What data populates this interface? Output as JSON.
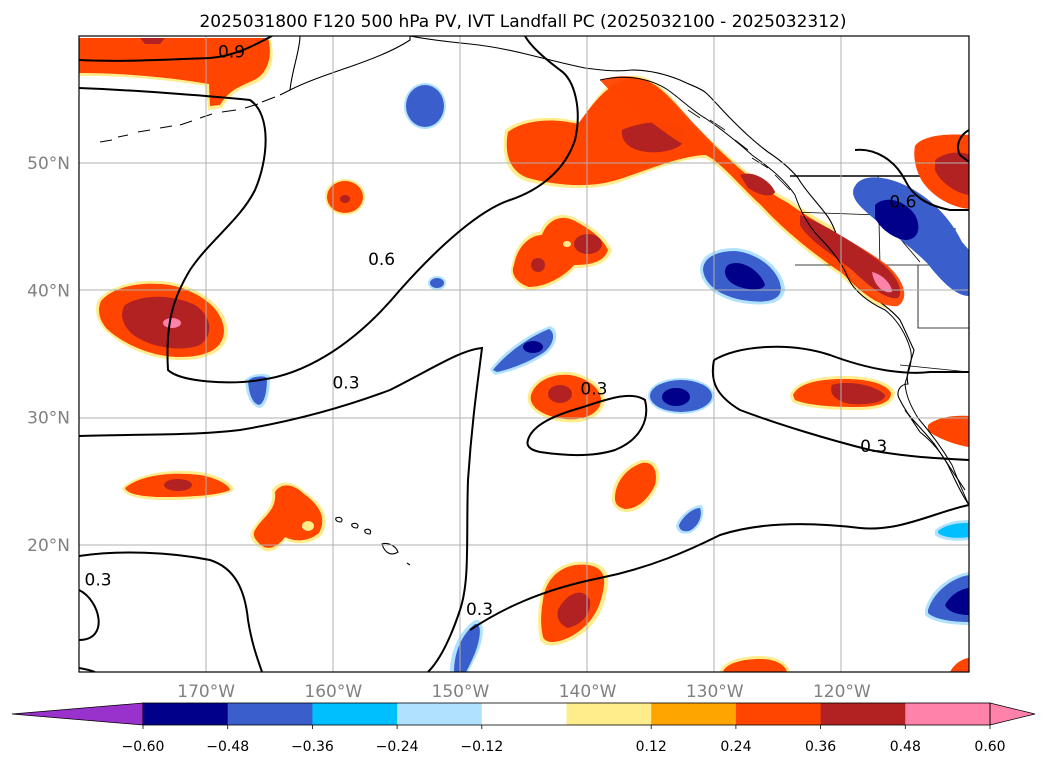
{
  "title": "2025031800 F120 500 hPa PV, IVT Landfall PC (2025032100 - 2025032312)",
  "colors": {
    "ocean": "#ffffff",
    "grid": "#b0b0b0",
    "coast": "#000000",
    "contour": "#000000",
    "neg_lt": "#b0e2ff",
    "neg_cyan": "#00bfff",
    "neg_mid": "#3a5fcd",
    "neg_dark": "#00008b",
    "pos_yel": "#ffec8b",
    "pos_org": "#ffa500",
    "pos_red": "#ff4500",
    "pos_dk": "#b22222",
    "pos_pink": "#ff82ab"
  },
  "map": {
    "lon_range": [
      -180,
      -110
    ],
    "lat_range": [
      10,
      60
    ],
    "lat_labels": [
      {
        "lat": 50,
        "text": "50°N"
      },
      {
        "lat": 40,
        "text": "40°N"
      },
      {
        "lat": 30,
        "text": "30°N"
      },
      {
        "lat": 20,
        "text": "20°N"
      }
    ],
    "lon_labels": [
      {
        "lon": -170,
        "text": "170°W"
      },
      {
        "lon": -160,
        "text": "160°W"
      },
      {
        "lon": -150,
        "text": "150°W"
      },
      {
        "lon": -140,
        "text": "140°W"
      },
      {
        "lon": -130,
        "text": "130°W"
      },
      {
        "lon": -120,
        "text": "120°W"
      }
    ],
    "contour_labels": [
      {
        "text": "0.9",
        "lon": -168.0,
        "lat": 58.3
      },
      {
        "text": "0.6",
        "lon": -156.2,
        "lat": 42.0
      },
      {
        "text": "0.6",
        "lon": -115.2,
        "lat": 46.5
      },
      {
        "text": "0.3",
        "lon": -159.0,
        "lat": 32.3
      },
      {
        "text": "0.3",
        "lon": -139.5,
        "lat": 31.8
      },
      {
        "text": "0.3",
        "lon": -117.5,
        "lat": 27.3
      },
      {
        "text": "0.3",
        "lon": -178.5,
        "lat": 16.8
      },
      {
        "text": "0.3",
        "lon": -148.5,
        "lat": 14.5
      }
    ]
  },
  "colorbar": {
    "ticks": [
      "−0.60",
      "−0.48",
      "−0.36",
      "−0.24",
      "−0.12",
      "0.12",
      "0.24",
      "0.36",
      "0.48",
      "0.60"
    ],
    "colors": [
      "#9932cc",
      "#00008b",
      "#3a5fcd",
      "#00bfff",
      "#b0e2ff",
      "#ffffff",
      "#ffec8b",
      "#ffa500",
      "#ff4500",
      "#b22222",
      "#ff82ab",
      "#ff82ab"
    ]
  }
}
